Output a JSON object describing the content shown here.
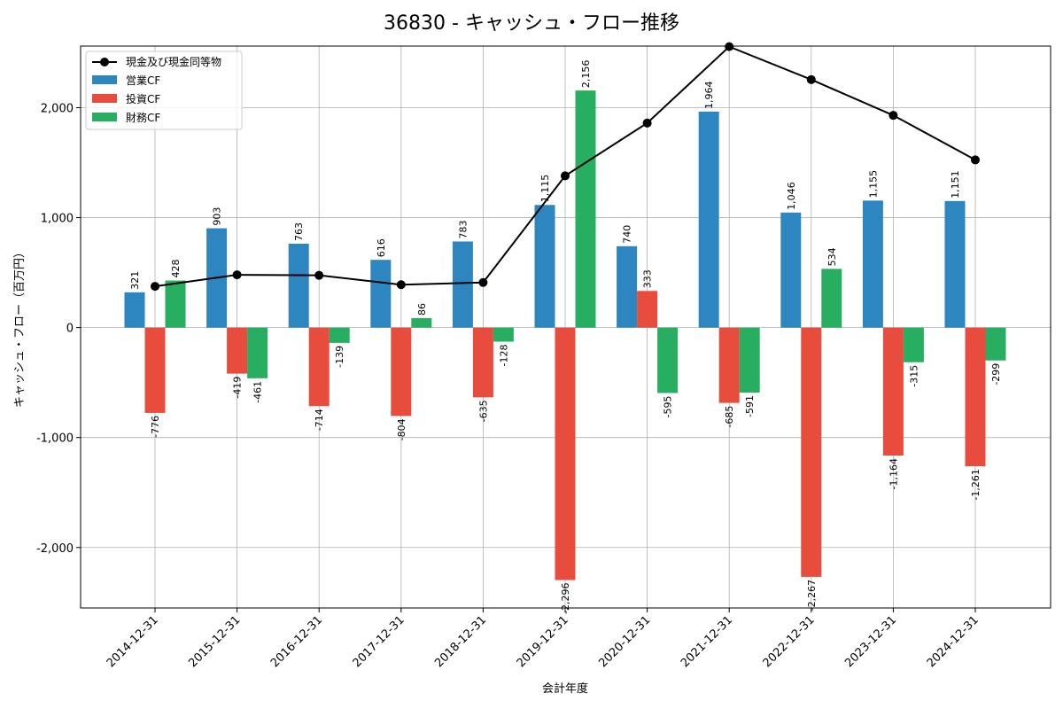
{
  "chart_data": {
    "type": "bar",
    "title": "36830 - キャッシュ・フロー推移",
    "xlabel": "会計年度",
    "ylabel": "キャッシュ・フロー（百万円）",
    "categories": [
      "2014-12-31",
      "2015-12-31",
      "2016-12-31",
      "2017-12-31",
      "2018-12-31",
      "2019-12-31",
      "2020-12-31",
      "2021-12-31",
      "2022-12-31",
      "2023-12-31",
      "2024-12-31"
    ],
    "ylim": [
      -2550,
      2560
    ],
    "yticks": [
      -2000,
      -1000,
      0,
      1000,
      2000
    ],
    "ytick_labels": [
      "-2,000",
      "-1,000",
      "0",
      "1,000",
      "2,000"
    ],
    "grid": true,
    "legend_position": "top-left",
    "series": [
      {
        "name": "営業CF",
        "color": "#2e86c1",
        "values": [
          321,
          903,
          763,
          616,
          783,
          1115,
          740,
          1964,
          1046,
          1155,
          1151
        ],
        "labels": [
          "321",
          "903",
          "763",
          "616",
          "783",
          "1,115",
          "740",
          "1,964",
          "1,046",
          "1,155",
          "1,151"
        ]
      },
      {
        "name": "投資CF",
        "color": "#e74c3c",
        "values": [
          -776,
          -419,
          -714,
          -804,
          -635,
          -2296,
          333,
          -685,
          -2267,
          -1164,
          -1261
        ],
        "labels": [
          "-776",
          "-419",
          "-714",
          "-804",
          "-635",
          "-2,296",
          "333",
          "-685",
          "-2,267",
          "-1,164",
          "-1,261"
        ]
      },
      {
        "name": "財務CF",
        "color": "#27ae60",
        "values": [
          428,
          -461,
          -139,
          86,
          -128,
          2156,
          -595,
          -591,
          534,
          -315,
          -299
        ],
        "labels": [
          "428",
          "-461",
          "-139",
          "86",
          "-128",
          "2,156",
          "-595",
          "-591",
          "534",
          "-315",
          "-299"
        ]
      }
    ],
    "line": {
      "name": "現金及び現金同等物",
      "color": "#000000",
      "values": [
        375,
        480,
        475,
        390,
        410,
        1380,
        1860,
        2555,
        2255,
        1930,
        1525
      ]
    }
  }
}
